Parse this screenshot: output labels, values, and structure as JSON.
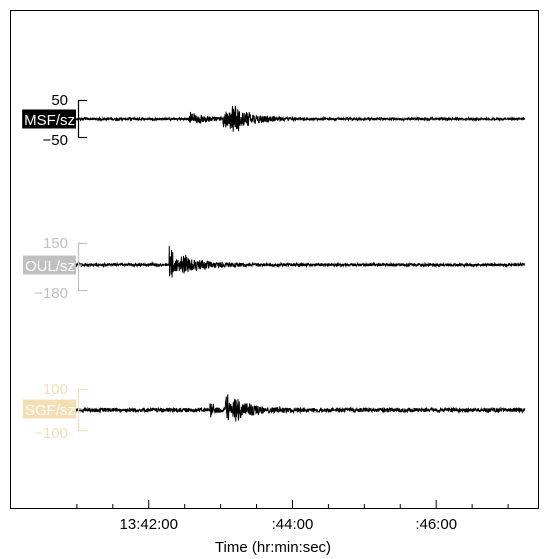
{
  "chart_data": {
    "type": "line",
    "title": "",
    "xlabel": "Time (hr:min:sec)",
    "x_ticks": [
      {
        "time": "13:41:00",
        "label": ""
      },
      {
        "time": "13:41:30",
        "label": ""
      },
      {
        "time": "13:42:00",
        "label": "13:42:00"
      },
      {
        "time": "13:42:30",
        "label": ""
      },
      {
        "time": "13:43:00",
        "label": ""
      },
      {
        "time": "13:43:30",
        "label": ""
      },
      {
        "time": "13:44:00",
        "label": ":44:00"
      },
      {
        "time": "13:44:30",
        "label": ""
      },
      {
        "time": "13:45:00",
        "label": ""
      },
      {
        "time": "13:45:30",
        "label": ""
      },
      {
        "time": "13:46:00",
        "label": ":46:00"
      },
      {
        "time": "13:46:30",
        "label": ""
      },
      {
        "time": "13:47:00",
        "label": ""
      }
    ],
    "x_range": [
      "13:40:05",
      "13:47:25"
    ],
    "grid": false,
    "series": [
      {
        "name": "MSF/sz",
        "color": "#000000",
        "y_ticks": [
          "50",
          "−50"
        ],
        "ylim": [
          -50,
          50
        ],
        "trace": {
          "start": "13:40:43",
          "end": "13:47:14",
          "noise": 4
        },
        "bursts": [
          {
            "time": "13:42:35",
            "amplitude": 20,
            "decay_s": 12
          },
          {
            "time": "13:43:03",
            "amplitude": 42,
            "decay_s": 10
          },
          {
            "time": "13:43:10",
            "amplitude": 30,
            "decay_s": 16
          }
        ]
      },
      {
        "name": "OUL/sz",
        "color": "#c0c0c0",
        "y_ticks": [
          "150",
          "−180"
        ],
        "ylim": [
          -180,
          150
        ],
        "trace": {
          "start": "13:40:43",
          "end": "13:47:14",
          "noise": 12
        },
        "bursts": [
          {
            "time": "13:42:18",
            "amplitude": 140,
            "decay_s": 6
          },
          {
            "time": "13:42:28",
            "amplitude": 60,
            "decay_s": 20
          }
        ]
      },
      {
        "name": "SGF/sz",
        "color": "#f5deb3",
        "y_ticks": [
          "100",
          "−100"
        ],
        "ylim": [
          -100,
          100
        ],
        "trace": {
          "start": "13:40:43",
          "end": "13:47:14",
          "noise": 12
        },
        "bursts": [
          {
            "time": "13:42:52",
            "amplitude": 40,
            "decay_s": 4
          },
          {
            "time": "13:43:05",
            "amplitude": 90,
            "decay_s": 6
          },
          {
            "time": "13:43:12",
            "amplitude": 45,
            "decay_s": 16
          }
        ]
      }
    ]
  }
}
